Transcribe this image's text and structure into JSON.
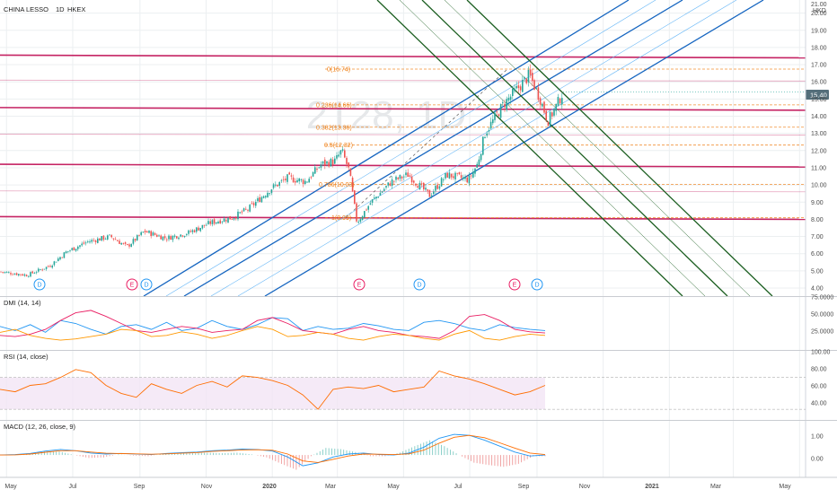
{
  "header": {
    "symbol": "CHINA LESSO",
    "interval": "1D",
    "exchange": "HKEX",
    "currency_top": "21.00",
    "currency": "HKD",
    "watermark": "2128, 1D"
  },
  "price_badge": "15.40",
  "colors": {
    "up": "#26a69a",
    "down": "#ef5350",
    "bg": "#ffffff",
    "grid": "#eceff1",
    "pitch_blue": "#1565c0",
    "pitch_light": "#64b5f6",
    "pitch_green": "#1b5e20",
    "magenta_line": "#c2185b",
    "fib": "#ef7d12",
    "price_badge": "#546e7a",
    "dmi_plus": "#2196f3",
    "dmi_minus": "#e91e63",
    "adx": "#ff9800",
    "rsi": "#ff6d00",
    "rsi_band": "#f3e5f5",
    "macd": "#2196f3",
    "signal": "#ff6d00"
  },
  "events": [
    "D",
    "E",
    "D",
    "E",
    "D",
    "E",
    "D"
  ],
  "chart_data": [
    {
      "type": "candlestick",
      "title": "CHINA LESSO, 1D, HKEX",
      "y_axis_ticks": [
        "21.00",
        "20.00",
        "19.00",
        "18.00",
        "17.00",
        "16.00",
        "15.00",
        "14.00",
        "13.00",
        "12.00",
        "11.00",
        "10.00",
        "9.00",
        "8.00",
        "7.00",
        "6.00",
        "5.00",
        "4.00"
      ],
      "ylim": [
        4.0,
        21.0
      ],
      "x_tick_labels": [
        "May",
        "Jul",
        "Sep",
        "Nov",
        "2020",
        "Mar",
        "May",
        "Jul",
        "Sep",
        "Nov",
        "2021",
        "Mar",
        "May"
      ],
      "close_path": [
        [
          "2019-04-25",
          4.95
        ],
        [
          "2019-05-20",
          4.75
        ],
        [
          "2019-06-10",
          5.3
        ],
        [
          "2019-06-25",
          6.1
        ],
        [
          "2019-07-15",
          6.7
        ],
        [
          "2019-08-05",
          7.0
        ],
        [
          "2019-08-20",
          6.4
        ],
        [
          "2019-09-05",
          7.3
        ],
        [
          "2019-09-25",
          6.9
        ],
        [
          "2019-10-15",
          7.2
        ],
        [
          "2019-11-05",
          7.8
        ],
        [
          "2019-11-25",
          8.1
        ],
        [
          "2019-12-10",
          8.6
        ],
        [
          "2019-12-31",
          9.8
        ],
        [
          "2020-01-15",
          10.4
        ],
        [
          "2020-02-01",
          10.2
        ],
        [
          "2020-02-15",
          11.2
        ],
        [
          "2020-02-28",
          11.4
        ],
        [
          "2020-03-05",
          12.0
        ],
        [
          "2020-03-12",
          10.8
        ],
        [
          "2020-03-19",
          7.8
        ],
        [
          "2020-04-01",
          9.0
        ],
        [
          "2020-04-20",
          10.2
        ],
        [
          "2020-05-05",
          10.6
        ],
        [
          "2020-05-25",
          9.4
        ],
        [
          "2020-06-10",
          10.6
        ],
        [
          "2020-06-30",
          10.3
        ],
        [
          "2020-07-08",
          11.2
        ],
        [
          "2020-07-15",
          13.0
        ],
        [
          "2020-07-31",
          14.6
        ],
        [
          "2020-08-14",
          15.6
        ],
        [
          "2020-08-25",
          16.4
        ],
        [
          "2020-09-04",
          15.0
        ],
        [
          "2020-09-11",
          13.7
        ],
        [
          "2020-09-18",
          14.5
        ],
        [
          "2020-09-25",
          15.4
        ]
      ],
      "last_price": 15.4,
      "horizontal_levels": [
        17.5,
        16.1,
        14.45,
        12.95,
        11.15,
        9.65,
        8.1
      ],
      "fib_levels": [
        {
          "label": "0(16.74)",
          "value": 16.74
        },
        {
          "label": "0.236(14.66)",
          "value": 14.66
        },
        {
          "label": "0.382(13.36)",
          "value": 13.36
        },
        {
          "label": "0.5(12.32)",
          "value": 12.32
        },
        {
          "label": "0.786(10.03)",
          "value": 10.03
        },
        {
          "label": "1(8.09)",
          "value": 8.09
        }
      ]
    },
    {
      "type": "line",
      "title": "DMI (14, 14)",
      "y_axis_ticks": [
        "75.0000",
        "50.0000",
        "25.0000"
      ],
      "ylim": [
        0,
        80
      ],
      "series": [
        {
          "color": "#2196f3",
          "values": [
            35,
            28,
            38,
            25,
            45,
            40,
            30,
            22,
            35,
            38,
            30,
            42,
            28,
            32,
            45,
            35,
            30,
            38,
            50,
            48,
            28,
            35,
            30,
            32,
            40,
            36,
            30,
            28,
            42,
            45,
            40,
            32,
            28,
            38,
            33,
            30,
            28
          ]
        },
        {
          "color": "#e91e63",
          "values": [
            20,
            18,
            22,
            30,
            45,
            58,
            62,
            52,
            40,
            28,
            25,
            30,
            35,
            32,
            25,
            28,
            30,
            45,
            50,
            40,
            28,
            25,
            22,
            30,
            35,
            28,
            25,
            20,
            18,
            15,
            28,
            52,
            55,
            45,
            30,
            26,
            24
          ]
        },
        {
          "color": "#ff9800",
          "values": [
            25,
            30,
            20,
            15,
            12,
            14,
            18,
            22,
            30,
            28,
            18,
            20,
            26,
            22,
            15,
            20,
            28,
            35,
            30,
            18,
            20,
            25,
            22,
            15,
            12,
            18,
            22,
            20,
            15,
            12,
            22,
            28,
            15,
            12,
            18,
            22,
            20
          ]
        }
      ]
    },
    {
      "type": "line",
      "title": "RSI (14, close)",
      "y_axis_ticks": [
        "100.00",
        "80.00",
        "60.00",
        "40.00"
      ],
      "ylim": [
        20,
        100
      ],
      "band": [
        30,
        70
      ],
      "series": [
        {
          "color": "#ff6d00",
          "values": [
            55,
            52,
            60,
            62,
            70,
            80,
            76,
            60,
            50,
            45,
            62,
            55,
            50,
            60,
            65,
            58,
            72,
            70,
            66,
            60,
            48,
            30,
            55,
            58,
            56,
            60,
            52,
            55,
            58,
            78,
            72,
            68,
            62,
            55,
            48,
            52,
            60
          ]
        }
      ]
    },
    {
      "type": "line",
      "title": "MACD (12, 26, close, 9)",
      "y_axis_ticks": [
        "1.00",
        "0.00"
      ],
      "ylim": [
        -1.0,
        1.6
      ],
      "series": [
        {
          "color": "#2196f3",
          "values": [
            0,
            0.02,
            0.08,
            0.2,
            0.28,
            0.22,
            0.1,
            0.05,
            0.08,
            0.05,
            0.02,
            0.08,
            0.12,
            0.15,
            0.22,
            0.25,
            0.3,
            0.28,
            0.2,
            -0.1,
            -0.55,
            -0.4,
            -0.1,
            0.05,
            0.1,
            0.02,
            0.0,
            0.1,
            0.4,
            0.85,
            1.05,
            1.0,
            0.75,
            0.45,
            0.15,
            -0.05,
            0.0
          ]
        },
        {
          "color": "#ff6d00",
          "values": [
            0,
            0.01,
            0.05,
            0.14,
            0.22,
            0.22,
            0.15,
            0.09,
            0.07,
            0.06,
            0.04,
            0.06,
            0.09,
            0.12,
            0.18,
            0.22,
            0.26,
            0.27,
            0.24,
            0.05,
            -0.3,
            -0.38,
            -0.22,
            -0.05,
            0.05,
            0.04,
            0.02,
            0.06,
            0.25,
            0.6,
            0.9,
            1.0,
            0.88,
            0.62,
            0.35,
            0.1,
            0.02
          ]
        }
      ]
    }
  ]
}
